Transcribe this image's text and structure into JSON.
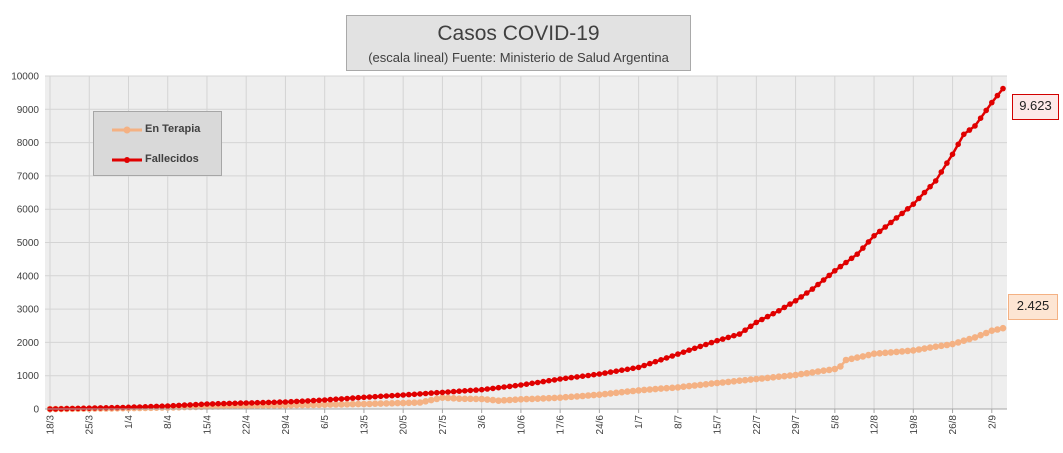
{
  "chart_data": {
    "type": "line",
    "title": "Casos COVID-19",
    "subtitle": "(escala lineal) Fuente: Ministerio de Salud Argentina",
    "ylim": [
      0,
      10000
    ],
    "y_ticks": [
      "0",
      "1000",
      "2000",
      "3000",
      "4000",
      "5000",
      "6000",
      "7000",
      "8000",
      "9000",
      "10000"
    ],
    "x_ticks": [
      "18/3",
      "25/3",
      "1/4",
      "8/4",
      "15/4",
      "22/4",
      "29/4",
      "6/5",
      "13/5",
      "20/5",
      "27/5",
      "3/6",
      "10/6",
      "17/6",
      "24/6",
      "1/7",
      "8/7",
      "15/7",
      "22/7",
      "29/7",
      "5/8",
      "12/8",
      "19/8",
      "26/8",
      "2/9"
    ],
    "x_tick_day_index": [
      0,
      7,
      14,
      21,
      28,
      35,
      42,
      49,
      56,
      63,
      70,
      77,
      84,
      91,
      98,
      105,
      112,
      119,
      126,
      133,
      140,
      147,
      154,
      161,
      168
    ],
    "x_range_days": [
      0,
      170
    ],
    "grid": true,
    "legend_position": "top-left",
    "series": [
      {
        "name": "En Terapia",
        "color": "#f4b183",
        "anchors": [
          [
            0,
            0
          ],
          [
            7,
            10
          ],
          [
            14,
            25
          ],
          [
            21,
            45
          ],
          [
            28,
            70
          ],
          [
            35,
            90
          ],
          [
            42,
            110
          ],
          [
            49,
            130
          ],
          [
            56,
            150
          ],
          [
            63,
            180
          ],
          [
            66,
            195
          ],
          [
            70,
            340
          ],
          [
            73,
            310
          ],
          [
            77,
            300
          ],
          [
            80,
            250
          ],
          [
            84,
            290
          ],
          [
            87,
            310
          ],
          [
            91,
            340
          ],
          [
            98,
            430
          ],
          [
            105,
            560
          ],
          [
            112,
            650
          ],
          [
            119,
            780
          ],
          [
            126,
            900
          ],
          [
            133,
            1020
          ],
          [
            136,
            1100
          ],
          [
            140,
            1200
          ],
          [
            141,
            1280
          ],
          [
            142,
            1470
          ],
          [
            145,
            1580
          ],
          [
            147,
            1660
          ],
          [
            150,
            1700
          ],
          [
            154,
            1760
          ],
          [
            158,
            1870
          ],
          [
            161,
            1950
          ],
          [
            165,
            2150
          ],
          [
            168,
            2350
          ],
          [
            170,
            2425
          ]
        ],
        "last_label": "2.425"
      },
      {
        "name": "Fallecidos",
        "color": "#e00000",
        "anchors": [
          [
            0,
            0
          ],
          [
            7,
            25
          ],
          [
            14,
            50
          ],
          [
            21,
            90
          ],
          [
            28,
            150
          ],
          [
            35,
            180
          ],
          [
            42,
            210
          ],
          [
            49,
            270
          ],
          [
            56,
            350
          ],
          [
            63,
            420
          ],
          [
            70,
            500
          ],
          [
            77,
            580
          ],
          [
            84,
            720
          ],
          [
            91,
            900
          ],
          [
            98,
            1050
          ],
          [
            105,
            1250
          ],
          [
            112,
            1650
          ],
          [
            119,
            2050
          ],
          [
            123,
            2250
          ],
          [
            126,
            2600
          ],
          [
            130,
            2950
          ],
          [
            133,
            3250
          ],
          [
            136,
            3600
          ],
          [
            140,
            4150
          ],
          [
            144,
            4650
          ],
          [
            147,
            5200
          ],
          [
            150,
            5600
          ],
          [
            154,
            6150
          ],
          [
            158,
            6850
          ],
          [
            161,
            7650
          ],
          [
            163,
            8250
          ],
          [
            165,
            8500
          ],
          [
            168,
            9200
          ],
          [
            170,
            9623
          ]
        ],
        "last_label": "9.623"
      }
    ]
  }
}
